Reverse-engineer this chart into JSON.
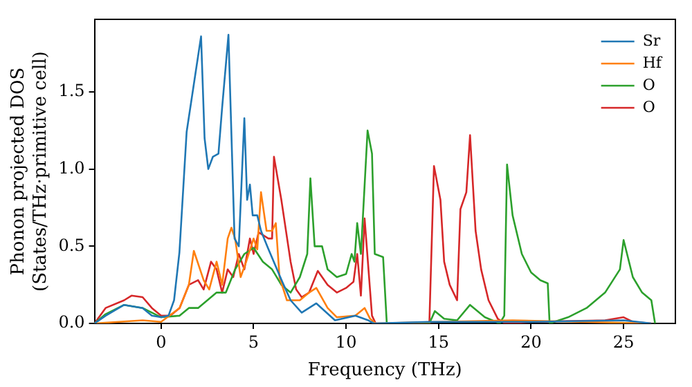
{
  "chart_data": {
    "type": "line",
    "xlabel": "Frequency (THz)",
    "ylabel": "Phonon projected DOS\n(States/THz·primitive cell)",
    "xlim": [
      -3.6,
      27.8
    ],
    "ylim": [
      0,
      1.97
    ],
    "xticks": [
      0,
      5,
      10,
      15,
      20,
      25
    ],
    "yticks": [
      {
        "value": 0,
        "label": "0.0"
      },
      {
        "value": 0.5,
        "label": "0.5"
      },
      {
        "value": 1,
        "label": "1.0"
      },
      {
        "value": 1.5,
        "label": "1.5"
      }
    ],
    "grid": false,
    "legend": "top right",
    "marker": "none",
    "line_style": "solid",
    "series": [
      {
        "name": "Sr",
        "color": "#1f77b4",
        "x": [
          -3.6,
          -3,
          -2,
          -1,
          -0.5,
          0,
          0.4,
          0.7,
          0.99,
          1.38,
          1.77,
          2.16,
          2.35,
          2.55,
          2.8,
          3.1,
          3.3,
          3.64,
          3.97,
          4.2,
          4.5,
          4.65,
          4.8,
          4.95,
          5.2,
          5.4,
          5.77,
          6.55,
          7.0,
          7.6,
          8.39,
          9.4,
          10.5,
          11.2,
          11.5,
          14.5,
          20,
          25,
          26.5
        ],
        "values": [
          0,
          0.05,
          0.12,
          0.1,
          0.05,
          0.04,
          0.05,
          0.15,
          0.46,
          1.24,
          1.55,
          1.86,
          1.2,
          1.0,
          1.08,
          1.1,
          1.4,
          1.87,
          0.55,
          0.5,
          1.33,
          0.8,
          0.9,
          0.7,
          0.7,
          0.6,
          0.49,
          0.27,
          0.15,
          0.07,
          0.13,
          0.02,
          0.05,
          0.02,
          0,
          0.01,
          0.01,
          0.02,
          0
        ]
      },
      {
        "name": "Hf",
        "color": "#ff7f0e",
        "x": [
          -3.6,
          -1,
          0,
          1,
          1.5,
          1.77,
          2.3,
          2.6,
          3.0,
          3.3,
          3.6,
          3.8,
          4.0,
          4.3,
          4.6,
          5.0,
          5.2,
          5.4,
          5.7,
          6.0,
          6.2,
          6.4,
          6.8,
          7.5,
          8.0,
          8.39,
          9.0,
          9.5,
          10.5,
          11.0,
          11.3,
          11.6,
          15,
          19,
          26.5
        ],
        "values": [
          0,
          0.02,
          0.01,
          0.1,
          0.25,
          0.47,
          0.28,
          0.22,
          0.4,
          0.25,
          0.55,
          0.62,
          0.55,
          0.3,
          0.4,
          0.55,
          0.48,
          0.85,
          0.6,
          0.6,
          0.65,
          0.3,
          0.15,
          0.15,
          0.2,
          0.23,
          0.1,
          0.04,
          0.05,
          0.1,
          0.03,
          0,
          0.01,
          0.02,
          0
        ]
      },
      {
        "name": "O",
        "color": "#2ca02c",
        "x": [
          -3.6,
          -3,
          -2,
          -1,
          0,
          1,
          1.5,
          2,
          3,
          3.5,
          4,
          4.5,
          5,
          5.5,
          6,
          6.5,
          7,
          7.5,
          7.9,
          8.07,
          8.3,
          8.7,
          9.0,
          9.5,
          10.0,
          10.3,
          10.45,
          10.6,
          10.8,
          11.16,
          11.4,
          11.55,
          12.0,
          12.2,
          14.5,
          14.8,
          15.3,
          16,
          16.7,
          17.5,
          18.3,
          18.55,
          18.7,
          19.0,
          19.5,
          20,
          20.5,
          20.9,
          21.0,
          22,
          23,
          24,
          24.8,
          25.0,
          25.5,
          26,
          26.5,
          26.7
        ],
        "values": [
          0,
          0.06,
          0.12,
          0.1,
          0.04,
          0.05,
          0.1,
          0.1,
          0.2,
          0.2,
          0.35,
          0.45,
          0.49,
          0.4,
          0.35,
          0.25,
          0.2,
          0.3,
          0.45,
          0.94,
          0.5,
          0.5,
          0.35,
          0.3,
          0.32,
          0.45,
          0.4,
          0.65,
          0.45,
          1.25,
          1.1,
          0.45,
          0.43,
          0,
          0,
          0.08,
          0.03,
          0.02,
          0.12,
          0.04,
          0,
          0.05,
          1.03,
          0.7,
          0.45,
          0.33,
          0.28,
          0.26,
          0,
          0.04,
          0.1,
          0.2,
          0.35,
          0.54,
          0.3,
          0.2,
          0.15,
          0
        ]
      },
      {
        "name": "O",
        "color": "#d62728",
        "x": [
          -3.6,
          -3,
          -2,
          -1.6,
          -1,
          -0.5,
          0,
          0.5,
          1,
          1.5,
          2,
          2.3,
          2.7,
          3.0,
          3.3,
          3.6,
          3.9,
          4.2,
          4.5,
          4.8,
          5.0,
          5.27,
          5.8,
          6.0,
          6.1,
          6.5,
          7.0,
          7.3,
          7.6,
          8.0,
          8.47,
          9.0,
          9.5,
          10.0,
          10.4,
          10.6,
          10.8,
          11.0,
          11.4,
          11.6,
          14.5,
          14.75,
          15.1,
          15.3,
          15.6,
          16.0,
          16.18,
          16.5,
          16.7,
          17.0,
          17.3,
          17.7,
          18.2,
          18.6,
          20,
          24,
          25,
          25.5,
          26.5
        ],
        "values": [
          0,
          0.1,
          0.15,
          0.18,
          0.17,
          0.1,
          0.05,
          0.05,
          0.1,
          0.25,
          0.28,
          0.22,
          0.4,
          0.35,
          0.2,
          0.35,
          0.3,
          0.45,
          0.35,
          0.55,
          0.45,
          0.59,
          0.55,
          0.55,
          1.08,
          0.8,
          0.4,
          0.22,
          0.17,
          0.2,
          0.34,
          0.25,
          0.2,
          0.23,
          0.27,
          0.45,
          0.18,
          0.68,
          0.05,
          0,
          0,
          1.02,
          0.8,
          0.4,
          0.25,
          0.15,
          0.74,
          0.85,
          1.22,
          0.6,
          0.35,
          0.15,
          0.03,
          0,
          0.01,
          0.02,
          0.04,
          0.01,
          0
        ]
      }
    ]
  }
}
